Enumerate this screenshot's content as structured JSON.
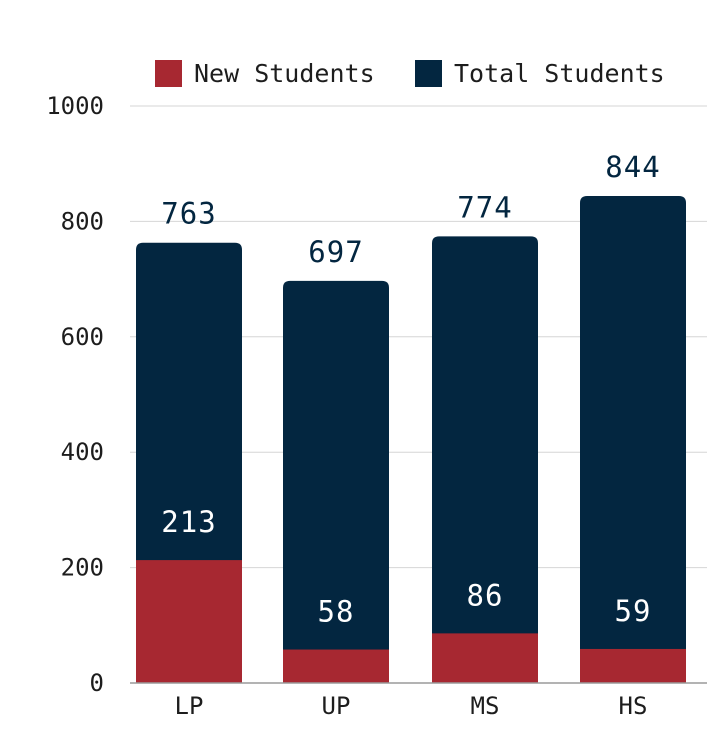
{
  "chart_data": {
    "type": "bar",
    "stacked": false,
    "overlap": true,
    "categories": [
      "LP",
      "UP",
      "MS",
      "HS"
    ],
    "series": [
      {
        "name": "New Students",
        "values": [
          213,
          58,
          86,
          59
        ],
        "color": "#a72831"
      },
      {
        "name": "Total Students",
        "values": [
          763,
          697,
          774,
          844
        ],
        "color": "#032640"
      }
    ],
    "ylim": [
      0,
      1000
    ],
    "yticks": [
      0,
      200,
      400,
      600,
      800,
      1000
    ],
    "grid": true,
    "legend": "top",
    "data_labels": true,
    "colors": {
      "grid": "#d6d6d6",
      "axis": "#9a9a9a",
      "label_on_dark": "#ffffff",
      "label_on_light": "#032640"
    }
  }
}
